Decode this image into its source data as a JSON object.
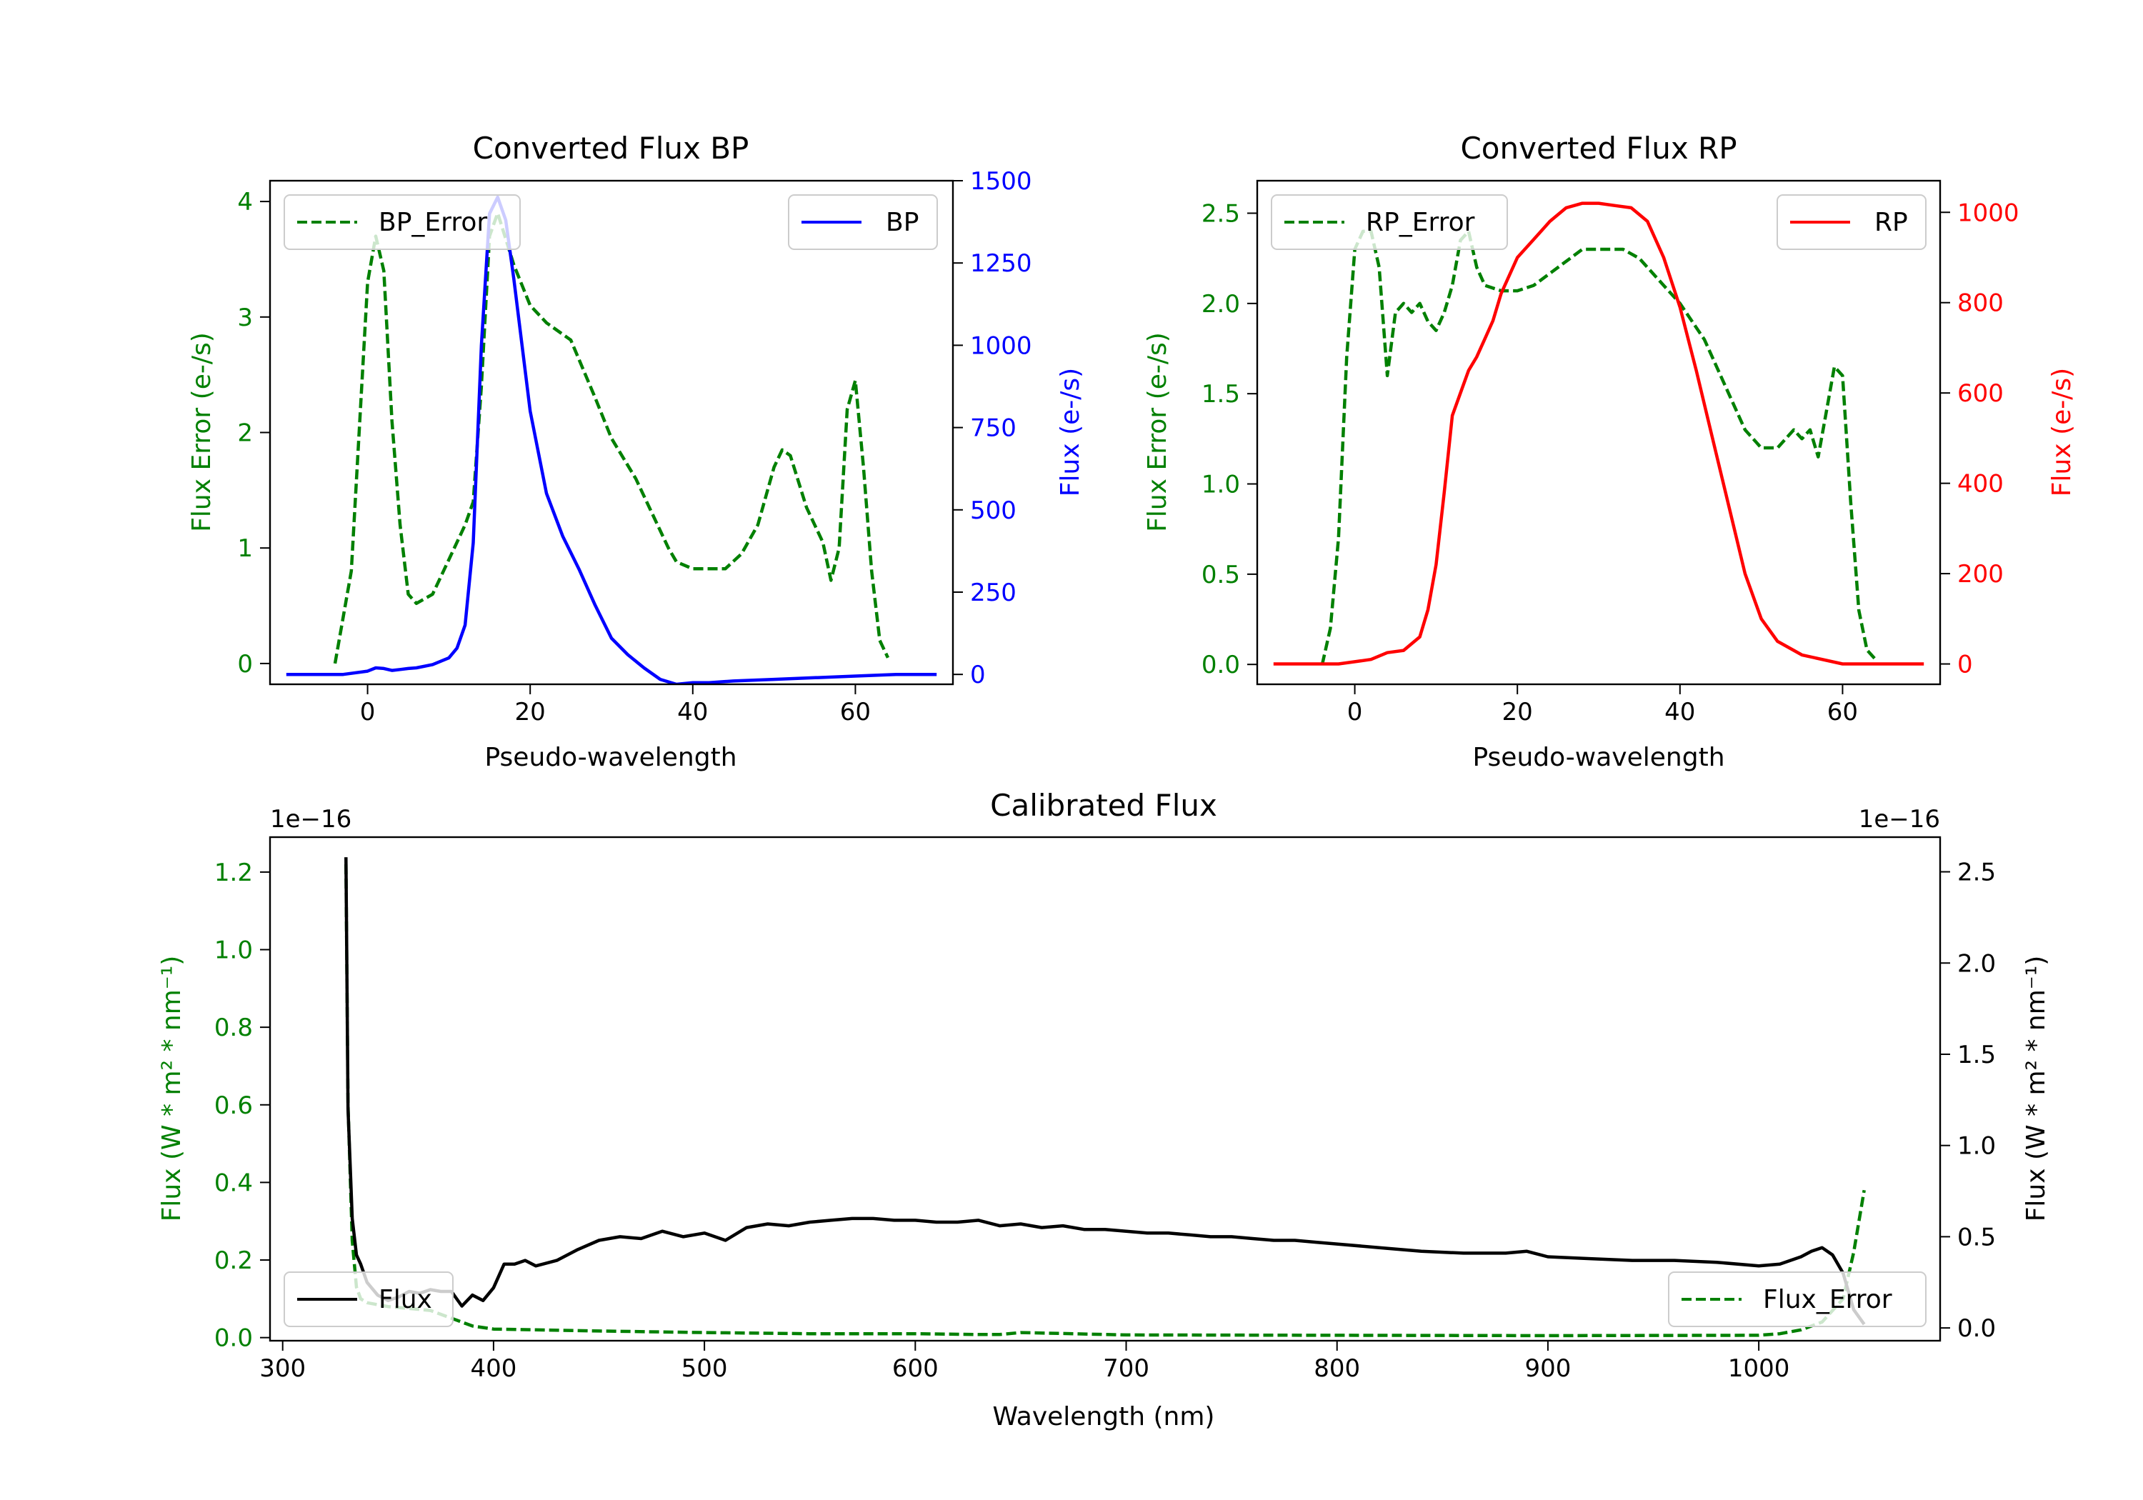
{
  "chart_data": [
    {
      "id": "bp",
      "type": "line",
      "title": "Converted Flux BP",
      "xlabel": "Pseudo-wavelength",
      "ylabel_left": "Flux Error (e-/s)",
      "ylabel_right": "Flux (e-/s)",
      "xlim": [
        -12,
        72
      ],
      "ylim_left": [
        -0.18,
        4.18
      ],
      "ylim_right": [
        -30,
        1500
      ],
      "xticks": [
        0,
        20,
        40,
        60
      ],
      "yticks_left": [
        0,
        1,
        2,
        3,
        4
      ],
      "yticks_right": [
        0,
        250,
        500,
        750,
        1000,
        1250,
        1500
      ],
      "left_color": "#008000",
      "right_color": "#0000ff",
      "series": [
        {
          "name": "BP_Error",
          "axis": "left",
          "style": "dashed",
          "color": "#008000",
          "legend": "top-left",
          "x": [
            -4,
            -2,
            0,
            1,
            2,
            3,
            4,
            5,
            6,
            8,
            10,
            12,
            13,
            14,
            15,
            16,
            18,
            20,
            22,
            25,
            28,
            30,
            33,
            35,
            37,
            38,
            40,
            42,
            44,
            46,
            48,
            50,
            51,
            52,
            54,
            56,
            57,
            58,
            59,
            60,
            61,
            62,
            63,
            64
          ],
          "y": [
            0,
            0.8,
            3.3,
            3.7,
            3.4,
            2.1,
            1.2,
            0.6,
            0.52,
            0.6,
            0.9,
            1.2,
            1.4,
            2.4,
            3.7,
            3.9,
            3.45,
            3.1,
            2.95,
            2.8,
            2.3,
            1.95,
            1.6,
            1.3,
            1.0,
            0.88,
            0.82,
            0.82,
            0.82,
            0.95,
            1.2,
            1.7,
            1.85,
            1.8,
            1.35,
            1.05,
            0.72,
            1.0,
            2.2,
            2.45,
            1.7,
            0.8,
            0.2,
            0.05
          ]
        },
        {
          "name": "BP",
          "axis": "right",
          "style": "solid",
          "color": "#0000ff",
          "legend": "top-right",
          "x": [
            -10,
            -6,
            -3,
            0,
            1,
            2,
            3,
            4,
            5,
            6,
            8,
            10,
            11,
            12,
            13,
            14,
            15,
            16,
            17,
            18,
            19,
            20,
            22,
            24,
            26,
            28,
            30,
            32,
            34,
            36,
            38,
            40,
            42,
            45,
            50,
            55,
            60,
            65,
            70
          ],
          "y": [
            0,
            0,
            0,
            10,
            20,
            18,
            12,
            15,
            18,
            20,
            30,
            50,
            80,
            150,
            400,
            1000,
            1400,
            1450,
            1380,
            1200,
            1000,
            800,
            550,
            420,
            320,
            210,
            110,
            60,
            20,
            -15,
            -30,
            -25,
            -25,
            -20,
            -15,
            -10,
            -5,
            0,
            0
          ]
        }
      ]
    },
    {
      "id": "rp",
      "type": "line",
      "title": "Converted Flux RP",
      "xlabel": "Pseudo-wavelength",
      "ylabel_left": "Flux Error (e-/s)",
      "ylabel_right": "Flux (e-/s)",
      "xlim": [
        -12,
        72
      ],
      "ylim_left": [
        -0.11,
        2.68
      ],
      "ylim_right": [
        -45,
        1070
      ],
      "xticks": [
        0,
        20,
        40,
        60
      ],
      "yticks_left": [
        "0.0",
        "0.5",
        "1.0",
        "1.5",
        "2.0",
        "2.5"
      ],
      "yticks_right": [
        0,
        200,
        400,
        600,
        800,
        1000
      ],
      "left_color": "#008000",
      "right_color": "#ff0000",
      "series": [
        {
          "name": "RP_Error",
          "axis": "left",
          "style": "dashed",
          "color": "#008000",
          "legend": "top-left",
          "x": [
            -4,
            -3,
            -2,
            -1,
            0,
            1,
            2,
            3,
            4,
            5,
            6,
            7,
            8,
            9,
            10,
            11,
            12,
            13,
            14,
            15,
            16,
            18,
            20,
            22,
            25,
            28,
            30,
            33,
            35,
            38,
            40,
            43,
            45,
            48,
            50,
            52,
            54,
            55,
            56,
            57,
            58,
            59,
            60,
            61,
            62,
            63,
            64
          ],
          "y": [
            0,
            0.2,
            0.7,
            1.7,
            2.3,
            2.4,
            2.4,
            2.2,
            1.6,
            1.95,
            2.0,
            1.95,
            2.0,
            1.9,
            1.85,
            1.95,
            2.1,
            2.35,
            2.4,
            2.2,
            2.1,
            2.07,
            2.07,
            2.1,
            2.2,
            2.3,
            2.3,
            2.3,
            2.25,
            2.1,
            2.0,
            1.8,
            1.6,
            1.3,
            1.2,
            1.2,
            1.3,
            1.25,
            1.3,
            1.15,
            1.4,
            1.65,
            1.6,
            0.9,
            0.3,
            0.08,
            0.03
          ]
        },
        {
          "name": "RP",
          "axis": "right",
          "style": "solid",
          "color": "#ff0000",
          "legend": "top-right",
          "x": [
            -10,
            -6,
            -2,
            0,
            2,
            4,
            6,
            8,
            9,
            10,
            11,
            12,
            13,
            14,
            15,
            16,
            17,
            18,
            20,
            22,
            24,
            26,
            28,
            30,
            32,
            34,
            36,
            38,
            40,
            42,
            44,
            46,
            48,
            50,
            52,
            55,
            60,
            65,
            70
          ],
          "y": [
            0,
            0,
            0,
            5,
            10,
            25,
            30,
            60,
            120,
            220,
            380,
            550,
            600,
            650,
            680,
            720,
            760,
            820,
            900,
            940,
            980,
            1010,
            1020,
            1020,
            1015,
            1010,
            980,
            900,
            790,
            650,
            500,
            350,
            200,
            100,
            50,
            20,
            0,
            0,
            0
          ]
        }
      ]
    },
    {
      "id": "calibrated",
      "type": "line",
      "title": "Calibrated Flux",
      "xlabel": "Wavelength (nm)",
      "ylabel_left": "Flux (W * m² * nm⁻¹)",
      "ylabel_right": "Flux (W * m² * nm⁻¹)",
      "offset_left": "1e−16",
      "offset_right": "1e−16",
      "xlim": [
        294,
        1086
      ],
      "ylim_left": [
        -0.008,
        1.29
      ],
      "ylim_right": [
        -0.07,
        2.69
      ],
      "xticks": [
        300,
        400,
        500,
        600,
        700,
        800,
        900,
        1000
      ],
      "yticks_left": [
        "0.0",
        "0.2",
        "0.4",
        "0.6",
        "0.8",
        "1.0",
        "1.2"
      ],
      "yticks_right": [
        "0.0",
        "0.5",
        "1.0",
        "1.5",
        "2.0",
        "2.5"
      ],
      "left_color": "#008000",
      "right_color": "#000000",
      "series": [
        {
          "name": "Flux_Error",
          "axis": "left",
          "style": "dashed",
          "color": "#008000",
          "legend": "bottom-right",
          "x": [
            330,
            331,
            333,
            335,
            337,
            340,
            350,
            360,
            370,
            380,
            390,
            400,
            420,
            450,
            500,
            550,
            600,
            630,
            640,
            650,
            700,
            800,
            900,
            1000,
            1010,
            1020,
            1030,
            1040,
            1045,
            1050
          ],
          "y": [
            1.22,
            0.6,
            0.25,
            0.13,
            0.1,
            0.09,
            0.08,
            0.075,
            0.07,
            0.05,
            0.03,
            0.022,
            0.02,
            0.017,
            0.013,
            0.01,
            0.01,
            0.008,
            0.008,
            0.013,
            0.007,
            0.006,
            0.005,
            0.006,
            0.01,
            0.02,
            0.04,
            0.1,
            0.22,
            0.38
          ]
        },
        {
          "name": "Flux",
          "axis": "right",
          "style": "solid",
          "color": "#000000",
          "legend": "bottom-left",
          "x": [
            330,
            331,
            333,
            335,
            337,
            340,
            345,
            350,
            355,
            360,
            365,
            370,
            375,
            380,
            385,
            390,
            395,
            400,
            405,
            410,
            415,
            420,
            430,
            440,
            450,
            460,
            470,
            480,
            490,
            500,
            510,
            520,
            530,
            540,
            550,
            560,
            570,
            580,
            590,
            600,
            610,
            620,
            630,
            640,
            650,
            660,
            670,
            680,
            690,
            700,
            710,
            720,
            730,
            740,
            750,
            760,
            770,
            780,
            790,
            800,
            820,
            840,
            860,
            880,
            890,
            900,
            920,
            940,
            960,
            980,
            1000,
            1010,
            1020,
            1025,
            1030,
            1035,
            1040,
            1045,
            1050
          ],
          "y": [
            2.58,
            1.2,
            0.6,
            0.4,
            0.35,
            0.25,
            0.18,
            0.15,
            0.17,
            0.2,
            0.19,
            0.21,
            0.2,
            0.2,
            0.12,
            0.18,
            0.15,
            0.22,
            0.35,
            0.35,
            0.37,
            0.34,
            0.37,
            0.43,
            0.48,
            0.5,
            0.49,
            0.53,
            0.5,
            0.52,
            0.48,
            0.55,
            0.57,
            0.56,
            0.58,
            0.59,
            0.6,
            0.6,
            0.59,
            0.59,
            0.58,
            0.58,
            0.59,
            0.56,
            0.57,
            0.55,
            0.56,
            0.54,
            0.54,
            0.53,
            0.52,
            0.52,
            0.51,
            0.5,
            0.5,
            0.49,
            0.48,
            0.48,
            0.47,
            0.46,
            0.44,
            0.42,
            0.41,
            0.41,
            0.42,
            0.39,
            0.38,
            0.37,
            0.37,
            0.36,
            0.34,
            0.35,
            0.39,
            0.42,
            0.44,
            0.4,
            0.3,
            0.1,
            0.02
          ]
        }
      ]
    }
  ]
}
